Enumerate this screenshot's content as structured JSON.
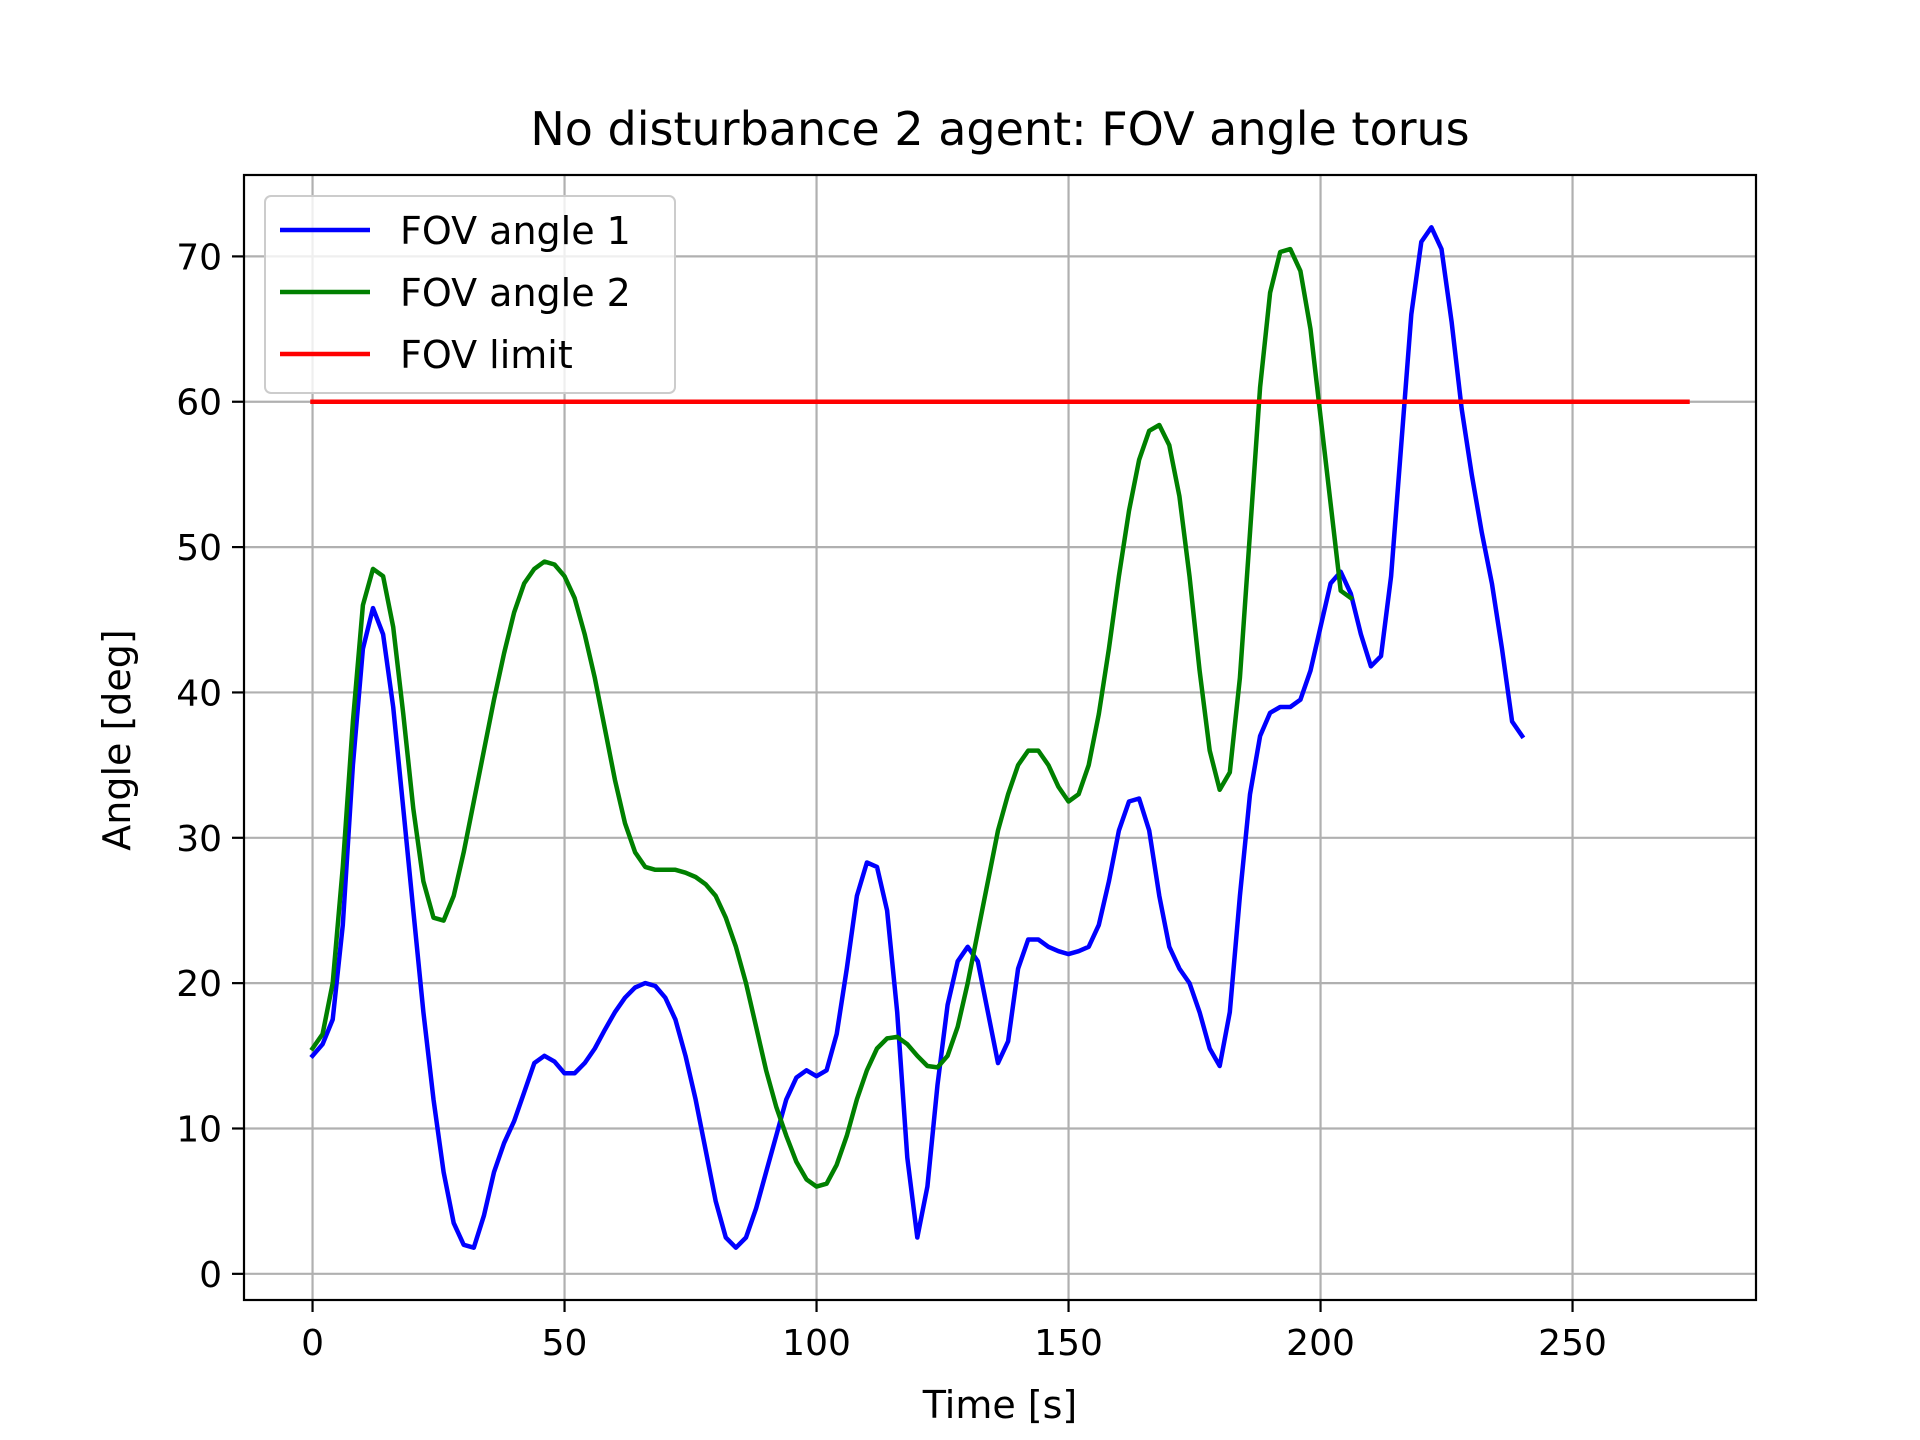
{
  "chart_data": {
    "type": "line",
    "title": "No disturbance 2 agent: FOV angle torus",
    "xlabel": "Time [s]",
    "ylabel": "Angle [deg]",
    "xlim": [
      -13.6,
      286.4
    ],
    "ylim": [
      -1.8,
      75.6
    ],
    "xticks": [
      0,
      50,
      100,
      150,
      200,
      250
    ],
    "yticks": [
      0,
      10,
      20,
      30,
      40,
      50,
      60,
      70
    ],
    "grid": true,
    "legend_position": "upper-left",
    "series": [
      {
        "name": "FOV angle 1",
        "color": "#0000ff",
        "points": [
          [
            0,
            15
          ],
          [
            2,
            15.8
          ],
          [
            4,
            17.5
          ],
          [
            6,
            24
          ],
          [
            8,
            35
          ],
          [
            10,
            43
          ],
          [
            12,
            45.8
          ],
          [
            14,
            44
          ],
          [
            16,
            39
          ],
          [
            18,
            32
          ],
          [
            20,
            25
          ],
          [
            22,
            18
          ],
          [
            24,
            12
          ],
          [
            26,
            7
          ],
          [
            28,
            3.5
          ],
          [
            30,
            2
          ],
          [
            32,
            1.8
          ],
          [
            34,
            4
          ],
          [
            36,
            7
          ],
          [
            38,
            9
          ],
          [
            40,
            10.5
          ],
          [
            42,
            12.5
          ],
          [
            44,
            14.5
          ],
          [
            46,
            15
          ],
          [
            48,
            14.6
          ],
          [
            50,
            13.8
          ],
          [
            52,
            13.8
          ],
          [
            54,
            14.5
          ],
          [
            56,
            15.5
          ],
          [
            58,
            16.8
          ],
          [
            60,
            18
          ],
          [
            62,
            19
          ],
          [
            64,
            19.7
          ],
          [
            66,
            20
          ],
          [
            68,
            19.8
          ],
          [
            70,
            19
          ],
          [
            72,
            17.5
          ],
          [
            74,
            15
          ],
          [
            76,
            12
          ],
          [
            78,
            8.5
          ],
          [
            80,
            5
          ],
          [
            82,
            2.5
          ],
          [
            84,
            1.8
          ],
          [
            86,
            2.5
          ],
          [
            88,
            4.5
          ],
          [
            90,
            7
          ],
          [
            92,
            9.5
          ],
          [
            94,
            12
          ],
          [
            96,
            13.5
          ],
          [
            98,
            14
          ],
          [
            100,
            13.6
          ],
          [
            102,
            14
          ],
          [
            104,
            16.5
          ],
          [
            106,
            21
          ],
          [
            108,
            26
          ],
          [
            110,
            28.3
          ],
          [
            112,
            28
          ],
          [
            114,
            25
          ],
          [
            116,
            18
          ],
          [
            118,
            8
          ],
          [
            120,
            2.5
          ],
          [
            122,
            6
          ],
          [
            124,
            13
          ],
          [
            126,
            18.5
          ],
          [
            128,
            21.5
          ],
          [
            130,
            22.5
          ],
          [
            132,
            21.5
          ],
          [
            134,
            18
          ],
          [
            136,
            14.5
          ],
          [
            138,
            16
          ],
          [
            140,
            21
          ],
          [
            142,
            23
          ],
          [
            144,
            23
          ],
          [
            146,
            22.5
          ],
          [
            148,
            22.2
          ],
          [
            150,
            22
          ],
          [
            152,
            22.2
          ],
          [
            154,
            22.5
          ],
          [
            156,
            24
          ],
          [
            158,
            27
          ],
          [
            160,
            30.5
          ],
          [
            162,
            32.5
          ],
          [
            164,
            32.7
          ],
          [
            166,
            30.5
          ],
          [
            168,
            26
          ],
          [
            170,
            22.5
          ],
          [
            172,
            21
          ],
          [
            174,
            20
          ],
          [
            176,
            18
          ],
          [
            178,
            15.5
          ],
          [
            180,
            14.3
          ],
          [
            182,
            18
          ],
          [
            184,
            26
          ],
          [
            186,
            33
          ],
          [
            188,
            37
          ],
          [
            190,
            38.6
          ],
          [
            192,
            39
          ],
          [
            194,
            39
          ],
          [
            196,
            39.5
          ],
          [
            198,
            41.5
          ],
          [
            200,
            44.5
          ],
          [
            202,
            47.5
          ],
          [
            204,
            48.3
          ],
          [
            206,
            46.8
          ],
          [
            208,
            44
          ],
          [
            210,
            41.8
          ],
          [
            212,
            42.5
          ],
          [
            214,
            48
          ],
          [
            216,
            57
          ],
          [
            218,
            66
          ],
          [
            220,
            71
          ],
          [
            222,
            72
          ],
          [
            224,
            70.5
          ],
          [
            226,
            65.5
          ],
          [
            228,
            59.5
          ],
          [
            230,
            55
          ],
          [
            232,
            51
          ],
          [
            234,
            47.5
          ],
          [
            236,
            43
          ],
          [
            238,
            38
          ],
          [
            240,
            37
          ]
        ]
      },
      {
        "name": "FOV angle 2",
        "color": "#008000",
        "points": [
          [
            0,
            15.5
          ],
          [
            2,
            16.5
          ],
          [
            4,
            20
          ],
          [
            6,
            28
          ],
          [
            8,
            38
          ],
          [
            10,
            46
          ],
          [
            12,
            48.5
          ],
          [
            14,
            48
          ],
          [
            16,
            44.5
          ],
          [
            18,
            38.5
          ],
          [
            20,
            32
          ],
          [
            22,
            27
          ],
          [
            24,
            24.5
          ],
          [
            26,
            24.3
          ],
          [
            28,
            26
          ],
          [
            30,
            29
          ],
          [
            32,
            32.5
          ],
          [
            34,
            36
          ],
          [
            36,
            39.5
          ],
          [
            38,
            42.7
          ],
          [
            40,
            45.5
          ],
          [
            42,
            47.5
          ],
          [
            44,
            48.5
          ],
          [
            46,
            49
          ],
          [
            48,
            48.8
          ],
          [
            50,
            48
          ],
          [
            52,
            46.5
          ],
          [
            54,
            44
          ],
          [
            56,
            41
          ],
          [
            58,
            37.5
          ],
          [
            60,
            34
          ],
          [
            62,
            31
          ],
          [
            64,
            29
          ],
          [
            66,
            28
          ],
          [
            68,
            27.8
          ],
          [
            70,
            27.8
          ],
          [
            72,
            27.8
          ],
          [
            74,
            27.6
          ],
          [
            76,
            27.3
          ],
          [
            78,
            26.8
          ],
          [
            80,
            26
          ],
          [
            82,
            24.5
          ],
          [
            84,
            22.5
          ],
          [
            86,
            20
          ],
          [
            88,
            17
          ],
          [
            90,
            14
          ],
          [
            92,
            11.5
          ],
          [
            94,
            9.5
          ],
          [
            96,
            7.7
          ],
          [
            98,
            6.5
          ],
          [
            100,
            6
          ],
          [
            102,
            6.2
          ],
          [
            104,
            7.5
          ],
          [
            106,
            9.5
          ],
          [
            108,
            12
          ],
          [
            110,
            14
          ],
          [
            112,
            15.5
          ],
          [
            114,
            16.2
          ],
          [
            116,
            16.3
          ],
          [
            118,
            15.8
          ],
          [
            120,
            15
          ],
          [
            122,
            14.3
          ],
          [
            124,
            14.2
          ],
          [
            126,
            15
          ],
          [
            128,
            17
          ],
          [
            130,
            20
          ],
          [
            132,
            23.5
          ],
          [
            134,
            27
          ],
          [
            136,
            30.5
          ],
          [
            138,
            33
          ],
          [
            140,
            35
          ],
          [
            142,
            36
          ],
          [
            144,
            36
          ],
          [
            146,
            35
          ],
          [
            148,
            33.5
          ],
          [
            150,
            32.5
          ],
          [
            152,
            33
          ],
          [
            154,
            35
          ],
          [
            156,
            38.5
          ],
          [
            158,
            43
          ],
          [
            160,
            48
          ],
          [
            162,
            52.5
          ],
          [
            164,
            56
          ],
          [
            166,
            58
          ],
          [
            168,
            58.4
          ],
          [
            170,
            57
          ],
          [
            172,
            53.5
          ],
          [
            174,
            48
          ],
          [
            176,
            41.5
          ],
          [
            178,
            36
          ],
          [
            180,
            33.3
          ],
          [
            182,
            34.5
          ],
          [
            184,
            41
          ],
          [
            186,
            51
          ],
          [
            188,
            61
          ],
          [
            190,
            67.5
          ],
          [
            192,
            70.3
          ],
          [
            194,
            70.5
          ],
          [
            196,
            69
          ],
          [
            198,
            65
          ],
          [
            200,
            59
          ],
          [
            202,
            53
          ],
          [
            204,
            47
          ],
          [
            206,
            46.5
          ]
        ]
      },
      {
        "name": "FOV limit",
        "color": "#ff0000",
        "points": [
          [
            0,
            60
          ],
          [
            272.8,
            60
          ]
        ]
      }
    ]
  }
}
